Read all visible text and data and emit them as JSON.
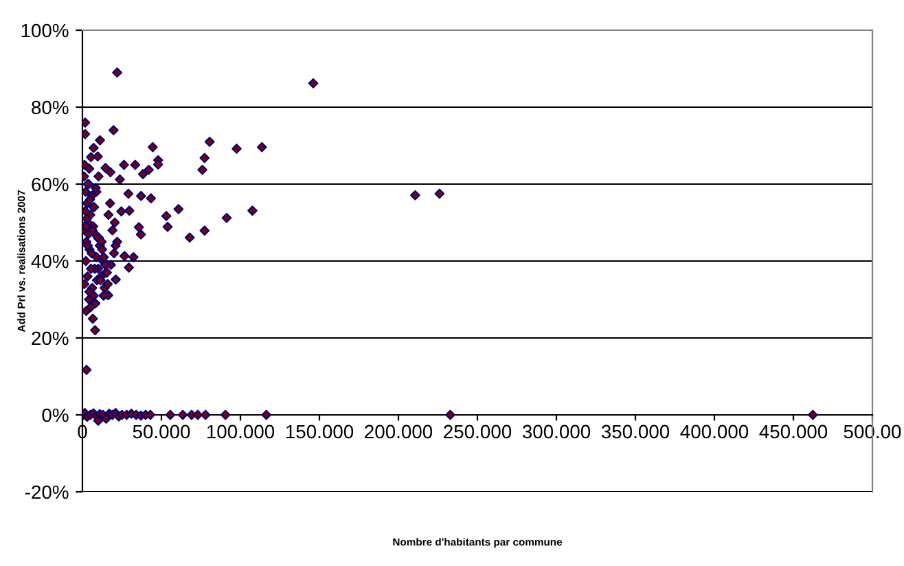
{
  "chart_data": {
    "type": "scatter",
    "xlabel": "Nombre d'habitants par commune",
    "ylabel": "Add Prl vs. realisations 2007",
    "xlim": [
      0,
      500
    ],
    "ylim": [
      -20,
      100
    ],
    "xticks": [
      0,
      {
        "value": 50,
        "label": "50.000"
      },
      {
        "value": 100,
        "label": "100.000"
      },
      {
        "value": 150,
        "label": "150.000"
      },
      {
        "value": 200,
        "label": "200.000"
      },
      {
        "value": 250,
        "label": "250.000"
      },
      {
        "value": 300,
        "label": "300.000"
      },
      {
        "value": 350,
        "label": "350.000"
      },
      {
        "value": 400,
        "label": "400.000"
      },
      {
        "value": 450,
        "label": "450.000"
      },
      {
        "value": 500,
        "label": "500.00"
      }
    ],
    "yticks": [
      {
        "value": -20,
        "label": "-20%"
      },
      {
        "value": 0,
        "label": "0%"
      },
      {
        "value": 20,
        "label": "20%"
      },
      {
        "value": 40,
        "label": "40%"
      },
      {
        "value": 60,
        "label": "60%"
      },
      {
        "value": 80,
        "label": "80%"
      },
      {
        "value": 100,
        "label": "100%"
      }
    ],
    "grid": "y",
    "marker": "diamond",
    "series": [
      {
        "color": "#000080",
        "x": [
          1.7,
          1.7,
          19.7,
          11.1,
          7.1,
          5.4,
          9.7,
          44.5,
          47.9,
          47.9,
          80.5,
          77.3,
          75.9,
          97.6,
          113.6,
          146.1,
          107.6,
          91.3,
          77.3,
          67.9,
          60.8,
          53.1,
          53.9,
          37.1,
          43.4,
          38.3,
          42,
          33.4,
          26.3,
          23.7,
          14.6,
          17.7,
          29.1,
          29.7,
          24.6,
          35.7,
          37,
          32.3,
          29.4,
          26.6,
          21.1,
          16.3,
          13.4,
          8,
          6.6,
          2.6,
          210.6,
          226,
          22,
          1,
          2,
          3,
          4,
          5,
          6,
          1.5,
          2.5,
          3.5,
          4.5,
          7,
          8,
          9,
          10,
          11,
          12,
          13,
          14,
          15,
          16,
          18,
          20,
          22,
          1.2,
          2.2,
          3.2,
          4.2,
          5.2,
          6.2,
          7.2,
          8.2,
          9.2,
          10.5,
          12.5,
          14.5,
          16.5,
          19,
          21,
          1.8,
          2.8,
          3.8,
          4.8,
          5.8,
          6.8,
          7.8,
          8.8,
          9.8,
          11.5,
          13.5,
          15.5,
          17.5,
          20.5,
          2.4,
          3.4,
          4.4,
          5.4,
          6.4,
          7.4,
          8.4,
          10.2,
          12.2,
          1.3,
          2.3,
          3.3,
          4.3,
          0.5,
          1.5,
          3,
          5,
          7,
          9,
          11,
          13,
          15,
          17,
          19,
          21,
          23,
          25,
          28,
          31,
          34,
          37,
          40,
          43,
          10,
          55.6,
          63.5,
          69.1,
          73,
          77.9,
          90.5,
          116.4,
          232.8,
          462.3
        ],
        "values": [
          76,
          73,
          74,
          71.4,
          69.4,
          67,
          67.2,
          69.6,
          66.2,
          65.1,
          71,
          66.8,
          63.7,
          69.2,
          69.6,
          86.2,
          53.1,
          51.2,
          47.9,
          46.1,
          53.5,
          51.7,
          48.9,
          56.9,
          56.3,
          62.6,
          63.7,
          65,
          65,
          61.2,
          64.2,
          63.1,
          57.5,
          53.1,
          52.9,
          48.8,
          46.9,
          41,
          38.3,
          41.3,
          35.2,
          31.1,
          31,
          22,
          25,
          11.7,
          57.1,
          57.5,
          89,
          62,
          58,
          55,
          60,
          52,
          57,
          48,
          45,
          50,
          43,
          54,
          47,
          41,
          38,
          44,
          36,
          40,
          33,
          37,
          34,
          39,
          42,
          45,
          34,
          40,
          36,
          30,
          28,
          33,
          31,
          29,
          35,
          46,
          43,
          39,
          52,
          48,
          44,
          53,
          51,
          47,
          56,
          42,
          49,
          38,
          58,
          46,
          35,
          41,
          37,
          55,
          50,
          27,
          44,
          32,
          38,
          48,
          54,
          59,
          62,
          45,
          65,
          49,
          60,
          64,
          0,
          0.5,
          -0.5,
          0,
          0.4,
          -0.3,
          0.2,
          0,
          -1,
          0.3,
          0,
          0.5,
          -0.4,
          0,
          0,
          0.3,
          0,
          -0.2,
          0,
          0,
          -1.5,
          0,
          0,
          0,
          0,
          0,
          0,
          0,
          0,
          0
        ]
      }
    ]
  }
}
